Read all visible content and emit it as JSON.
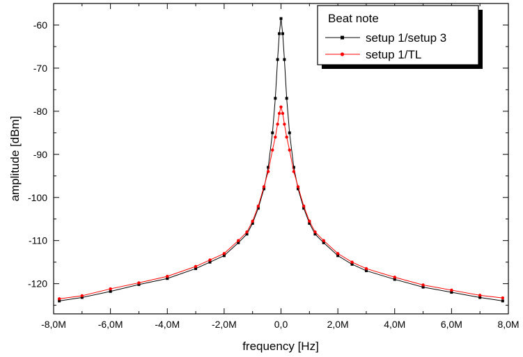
{
  "chart_data": {
    "type": "line",
    "xlabel": "frequency [Hz]",
    "ylabel": "amplitude [dBm]",
    "xlim": [
      -8000000,
      8000000
    ],
    "ylim": [
      -127,
      -55
    ],
    "x_ticks": [
      {
        "value": -8000000,
        "label": "-8,0M"
      },
      {
        "value": -6000000,
        "label": "-6,0M"
      },
      {
        "value": -4000000,
        "label": "-4,0M"
      },
      {
        "value": -2000000,
        "label": "-2,0M"
      },
      {
        "value": 0,
        "label": "0,0"
      },
      {
        "value": 2000000,
        "label": "2,0M"
      },
      {
        "value": 4000000,
        "label": "4,0M"
      },
      {
        "value": 6000000,
        "label": "6,0M"
      },
      {
        "value": 8000000,
        "label": "8,0M"
      }
    ],
    "y_ticks": [
      {
        "value": -60,
        "label": "-60"
      },
      {
        "value": -70,
        "label": "-70"
      },
      {
        "value": -80,
        "label": "-80"
      },
      {
        "value": -90,
        "label": "-90"
      },
      {
        "value": -100,
        "label": "-100"
      },
      {
        "value": -110,
        "label": "-110"
      },
      {
        "value": -120,
        "label": "-120"
      }
    ],
    "legend": {
      "title": "Beat note",
      "placement": "top-right"
    },
    "series": [
      {
        "name": "setup 1/setup 3",
        "color": "#000000",
        "marker": "square",
        "x": [
          -7800000,
          -7000000,
          -6000000,
          -5000000,
          -4000000,
          -3000000,
          -2500000,
          -2000000,
          -1500000,
          -1200000,
          -1000000,
          -800000,
          -600000,
          -450000,
          -300000,
          -200000,
          -120000,
          -60000,
          0,
          60000,
          120000,
          200000,
          300000,
          450000,
          600000,
          800000,
          1000000,
          1200000,
          1500000,
          2000000,
          2500000,
          3000000,
          4000000,
          5000000,
          6000000,
          7000000,
          7800000
        ],
        "values": [
          -124,
          -123.2,
          -121.8,
          -120.2,
          -118.8,
          -116.5,
          -115,
          -113.5,
          -110.5,
          -108.5,
          -106,
          -102.5,
          -98,
          -93,
          -85,
          -77,
          -68,
          -62,
          -58.5,
          -62,
          -68,
          -77,
          -85,
          -93,
          -98,
          -102.5,
          -106,
          -108.5,
          -110.5,
          -113.5,
          -115.5,
          -117,
          -119,
          -120.8,
          -122,
          -123.2,
          -124
        ]
      },
      {
        "name": "setup 1/TL",
        "color": "#ff0000",
        "marker": "circle",
        "x": [
          -7800000,
          -7000000,
          -6000000,
          -5000000,
          -4000000,
          -3000000,
          -2500000,
          -2000000,
          -1500000,
          -1200000,
          -1000000,
          -800000,
          -600000,
          -450000,
          -300000,
          -200000,
          -120000,
          -60000,
          0,
          60000,
          120000,
          200000,
          300000,
          450000,
          600000,
          800000,
          1000000,
          1200000,
          1500000,
          2000000,
          2500000,
          3000000,
          4000000,
          5000000,
          6000000,
          7000000,
          7800000
        ],
        "values": [
          -123.5,
          -122.8,
          -121.2,
          -119.8,
          -118.3,
          -116,
          -114.5,
          -113,
          -110,
          -108,
          -105.5,
          -102,
          -97.5,
          -94,
          -89,
          -86,
          -83,
          -80.5,
          -79,
          -80.5,
          -83,
          -86,
          -89,
          -94,
          -97.5,
          -102,
          -105.5,
          -108,
          -110,
          -113,
          -115,
          -116.5,
          -118.5,
          -120.3,
          -121.5,
          -122.7,
          -123.3
        ]
      }
    ]
  }
}
